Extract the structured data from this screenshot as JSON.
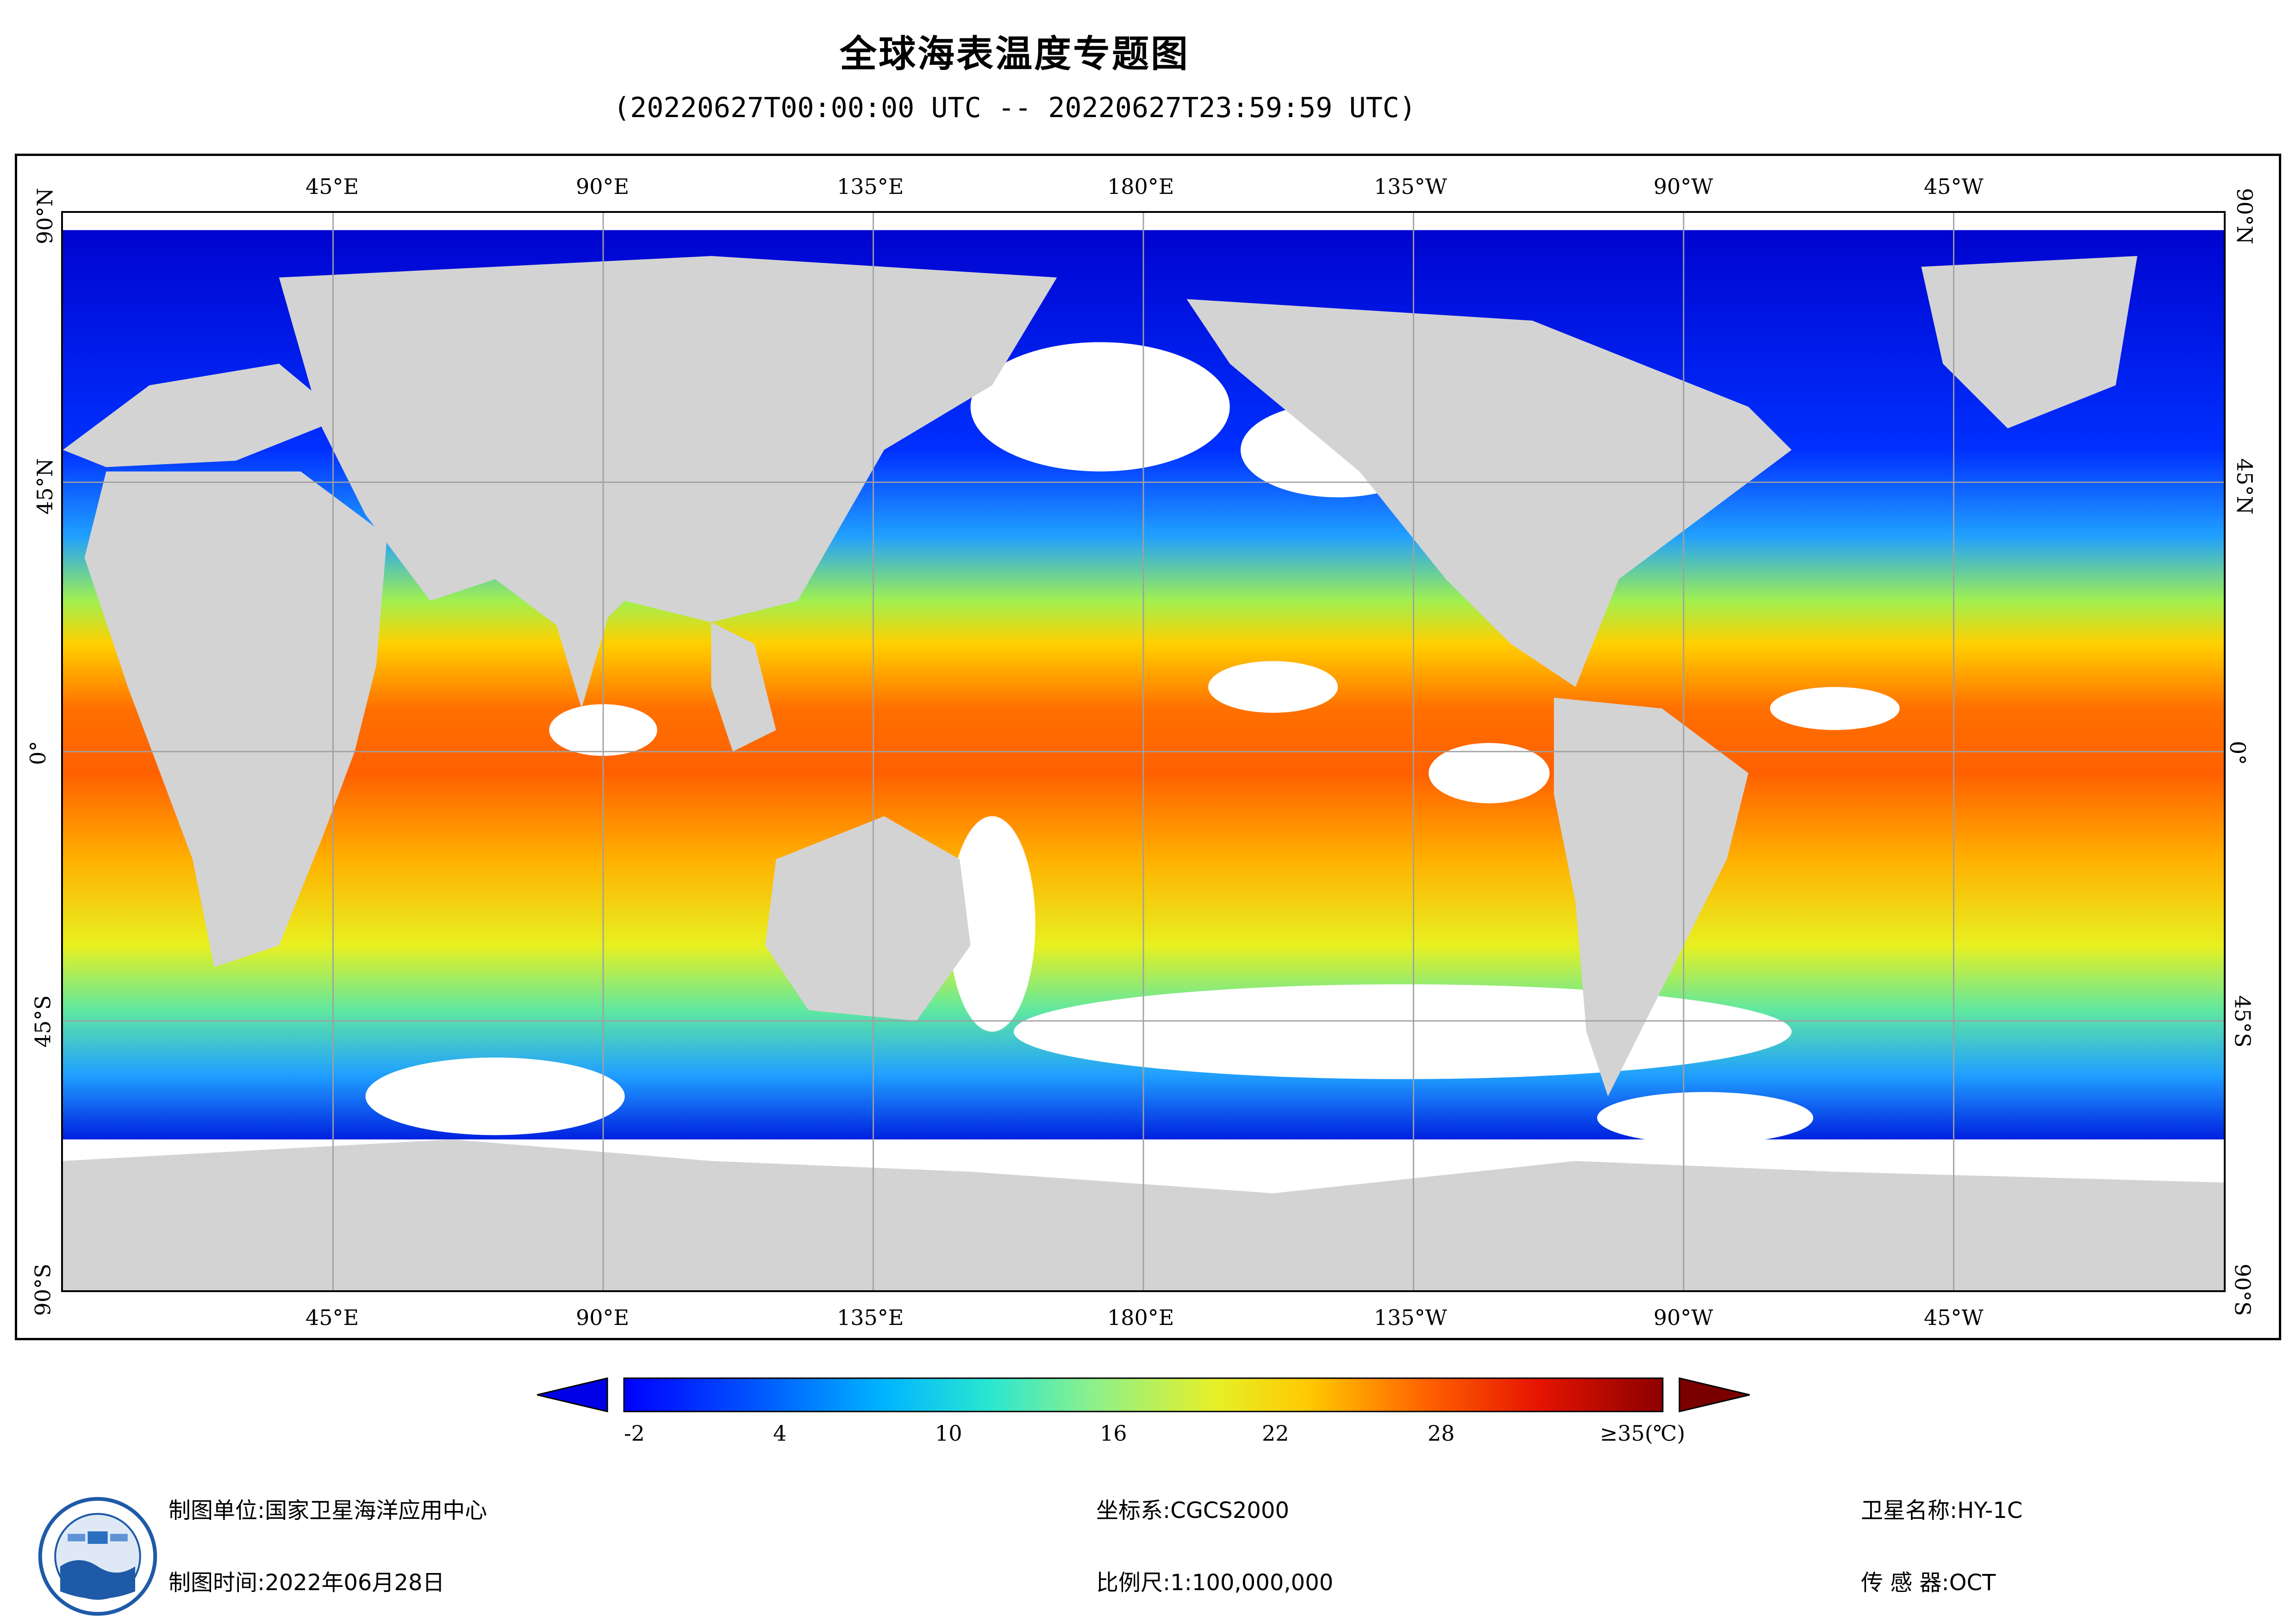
{
  "title": "全球海表温度专题图",
  "subtitle": "(20220627T00:00:00 UTC -- 20220627T23:59:59 UTC)",
  "map": {
    "lon_ticks_top": [
      "45°E",
      "90°E",
      "135°E",
      "180°E",
      "135°W",
      "90°W",
      "45°W"
    ],
    "lon_ticks_bottom": [
      "45°E",
      "90°E",
      "135°E",
      "180°E",
      "135°W",
      "90°W",
      "45°W"
    ],
    "lat_ticks_left": [
      "90°N",
      "45°N",
      "0°",
      "45°S",
      "90°S"
    ],
    "lat_ticks_right": [
      "90°N",
      "45°N",
      "0°",
      "45°S",
      "90°S"
    ],
    "colors": {
      "land": "#d3d3d3",
      "cloud": "#ffffff",
      "grid": "#a0a0a0"
    }
  },
  "colorbar": {
    "labels": [
      "-2",
      "4",
      "10",
      "16",
      "22",
      "28",
      "≥35(℃)"
    ],
    "colors": [
      "#0000ff",
      "#0050ff",
      "#00b4ff",
      "#28e6d2",
      "#8cf08c",
      "#e6f028",
      "#ffc800",
      "#ff6400",
      "#e61400",
      "#8b0000"
    ],
    "under_color": "#0000e6",
    "over_color": "#7a0000"
  },
  "footer": {
    "org_label": "制图单位:",
    "org_value": "国家卫星海洋应用中心",
    "date_label": "制图时间:",
    "date_value": "2022年06月28日",
    "crs_label": "坐标系:",
    "crs_value": "CGCS2000",
    "scale_label": "比例尺:",
    "scale_value": "1:100,000,000",
    "satellite_label": "卫星名称:",
    "satellite_value": "HY-1C",
    "sensor_label": "传 感 器:",
    "sensor_value": "OCT"
  }
}
